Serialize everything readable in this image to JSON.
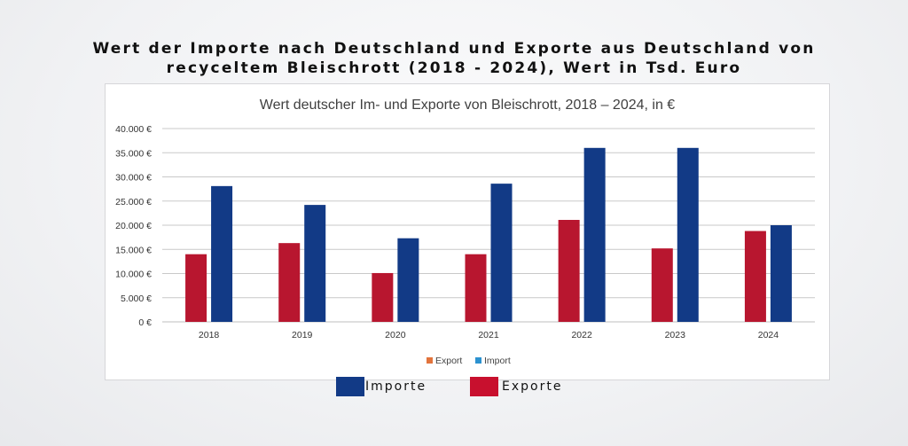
{
  "header": {
    "title_line1": "Wert der Importe nach Deutschland und Exporte aus Deutschland von",
    "title_line2": "recyceltem Bleischrott (2018 - 2024), Wert in Tsd. Euro"
  },
  "chart_data": {
    "type": "bar",
    "title": "Wert deutscher Im- und Exporte von Bleischrott, 2018 – 2024, in €",
    "xlabel": "",
    "ylabel": "",
    "categories": [
      "2018",
      "2019",
      "2020",
      "2021",
      "2022",
      "2023",
      "2024"
    ],
    "series": [
      {
        "name": "Export",
        "values": [
          14000,
          16300,
          10100,
          14000,
          21100,
          15200,
          18800
        ],
        "color": "#b8162f"
      },
      {
        "name": "Import",
        "values": [
          28100,
          24200,
          17300,
          28600,
          36000,
          36000,
          20000
        ],
        "color": "#123a86"
      }
    ],
    "ylim": [
      0,
      40000
    ],
    "yticks": [
      0,
      5000,
      10000,
      15000,
      20000,
      25000,
      30000,
      35000,
      40000
    ],
    "ytick_labels": [
      "0 €",
      "5.000 €",
      "10.000 €",
      "15.000 €",
      "20.000 €",
      "25.000 €",
      "30.000 €",
      "35.000 €",
      "40.000 €"
    ],
    "grid": true,
    "legend": {
      "placement": "bottom",
      "entries": [
        {
          "label": "Export",
          "color": "#e2743c"
        },
        {
          "label": "Import",
          "color": "#2c92d0"
        }
      ]
    }
  },
  "bottom_legend": {
    "items": [
      {
        "label": "Importe",
        "color": "#123a86"
      },
      {
        "label": "Exporte",
        "color": "#c8102e"
      }
    ]
  }
}
